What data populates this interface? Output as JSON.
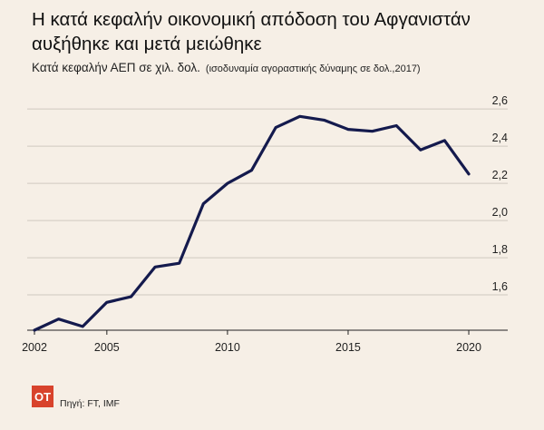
{
  "title_line1": "Η κατά κεφαλήν οικονομική απόδοση του Αφγανιστάν",
  "title_line2": "αυξήθηκε και μετά μειώθηκε",
  "subtitle_main": "Κατά κεφαλήν ΑΕΠ σε χιλ. δολ.",
  "subtitle_note": "(ισοδυναμία αγοραστικής δύναμης σε δολ.,2017)",
  "source": "Πηγή: FT, IMF",
  "logo_text": "OT",
  "colors": {
    "background": "#f6efe6",
    "line": "#141a4d",
    "logo": "#d8432c"
  },
  "chart_data": {
    "type": "line",
    "title": "Η κατά κεφαλήν οικονομική απόδοση του Αφγανιστάν αυξήθηκε και μετά μειώθηκε",
    "subtitle": "Κατά κεφαλήν ΑΕΠ σε χιλ. δολ. (ισοδυναμία αγοραστικής δύναμης σε δολ.,2017)",
    "xlabel": "",
    "ylabel": "",
    "x_ticks": [
      2002,
      2005,
      2010,
      2015,
      2020
    ],
    "y_ticks": [
      1.6,
      1.8,
      2.0,
      2.2,
      2.4,
      2.6
    ],
    "y_tick_labels": [
      "1,6",
      "1,8",
      "2,0",
      "2,2",
      "2,4",
      "2,6"
    ],
    "xlim": [
      2002,
      2020.6
    ],
    "ylim": [
      1.41,
      2.62
    ],
    "grid": "horizontal",
    "y_axis_position": "right",
    "series": [
      {
        "name": "",
        "x": [
          2002,
          2003,
          2004,
          2005,
          2006,
          2007,
          2008,
          2009,
          2010,
          2011,
          2012,
          2013,
          2014,
          2015,
          2016,
          2017,
          2018,
          2019,
          2020
        ],
        "values": [
          1.41,
          1.47,
          1.43,
          1.56,
          1.59,
          1.75,
          1.77,
          2.09,
          2.2,
          2.27,
          2.5,
          2.56,
          2.54,
          2.49,
          2.48,
          2.51,
          2.38,
          2.43,
          2.25
        ]
      }
    ]
  }
}
